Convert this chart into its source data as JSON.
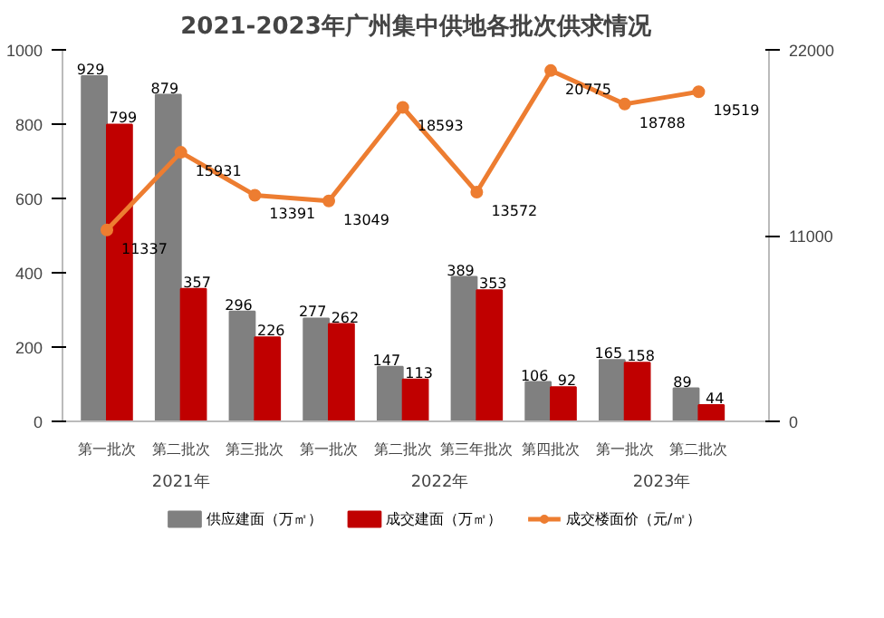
{
  "chart_data": {
    "type": "bar",
    "title": "2021-2023年广州集中供地各批次供求情况",
    "categories": [
      "第一批次",
      "第二批次",
      "第三批次",
      "第一批次",
      "第二批次",
      "第三年批次",
      "第四批次",
      "第一批次",
      "第二批次"
    ],
    "annotations": [
      "2021年",
      "2022年",
      "2023年"
    ],
    "series": [
      {
        "name": "供应建面（万㎡）",
        "color": "#808080",
        "values": [
          929,
          879,
          296,
          277,
          147,
          389,
          106,
          165,
          89
        ]
      },
      {
        "name": "成交建面（万㎡）",
        "color": "#c00000",
        "values": [
          799,
          357,
          226,
          262,
          113,
          353,
          92,
          158,
          44
        ]
      },
      {
        "name": "成交楼面价（元/㎡）",
        "color": "#ed7d31",
        "type": "line",
        "axis": "y2",
        "marker": "circle",
        "values": [
          11337,
          15931,
          13391,
          13049,
          18593,
          13572,
          20775,
          18788,
          19519
        ]
      }
    ],
    "ylim": [
      0,
      1000
    ],
    "yticks": [
      0,
      200,
      400,
      600,
      800,
      1000
    ],
    "y2lim": [
      0,
      22000
    ],
    "y2ticks": [
      0,
      11000,
      22000
    ],
    "data_labels": true,
    "grid": false,
    "legend": "bottom",
    "line_style": "solid"
  }
}
